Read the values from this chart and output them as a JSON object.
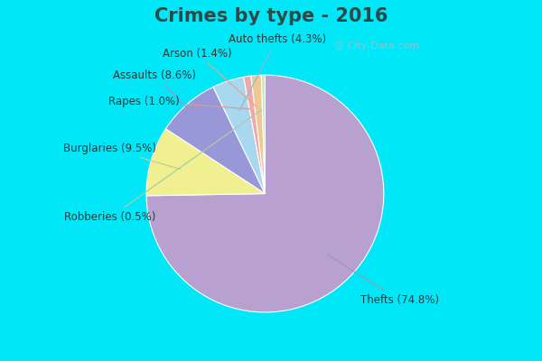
{
  "title": "Crimes by type - 2016",
  "title_fontsize": 15,
  "title_fontweight": "bold",
  "labels": [
    "Thefts",
    "Burglaries",
    "Assaults",
    "Auto thefts",
    "Rapes",
    "Arson",
    "Robberies"
  ],
  "percentages": [
    74.8,
    9.5,
    8.6,
    4.3,
    1.0,
    1.4,
    0.5
  ],
  "colors": [
    "#b8a0d0",
    "#f0f090",
    "#9898d8",
    "#a8d8f0",
    "#f0a8a8",
    "#f0c898",
    "#c8e8c0"
  ],
  "bg_cyan": "#00e8f8",
  "bg_body": "#e0f5e8",
  "label_fontsize": 8.5,
  "startangle": 90,
  "watermark": "@ City-Data.com"
}
